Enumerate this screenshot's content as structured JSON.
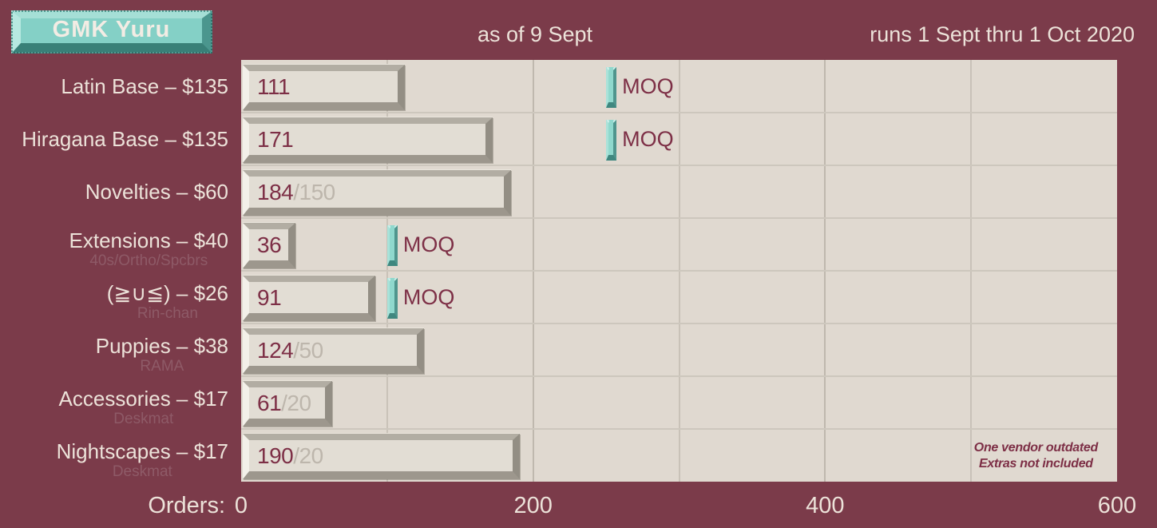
{
  "header": {
    "title": "GMK Yuru",
    "as_of": "as of 9 Sept",
    "run_dates": "runs 1 Sept thru 1 Oct 2020"
  },
  "chart_data": {
    "type": "bar",
    "orientation": "horizontal",
    "xlabel": "Orders:",
    "xlim": [
      0,
      600
    ],
    "xticks": [
      0,
      200,
      400,
      600
    ],
    "minor_gridlines": [
      100,
      300,
      500
    ],
    "major_gridlines": [
      200,
      400
    ],
    "moq_label": "MOQ",
    "rows": [
      {
        "label": "Latin Base – $135",
        "sublabel": "",
        "value": 111,
        "cap": null,
        "moq": 250
      },
      {
        "label": "Hiragana Base – $135",
        "sublabel": "",
        "value": 171,
        "cap": null,
        "moq": 250
      },
      {
        "label": "Novelties – $60",
        "sublabel": "",
        "value": 184,
        "cap": 150,
        "moq": null
      },
      {
        "label": "Extensions – $40",
        "sublabel": "40s/Ortho/Spcbrs",
        "value": 36,
        "cap": null,
        "moq": 100
      },
      {
        "label": "(≧∪≦) – $26",
        "sublabel": "Rin-chan",
        "value": 91,
        "cap": null,
        "moq": 100
      },
      {
        "label": "Puppies – $38",
        "sublabel": "RAMA",
        "value": 124,
        "cap": 50,
        "moq": null
      },
      {
        "label": "Accessories – $17",
        "sublabel": "Deskmat",
        "value": 61,
        "cap": 20,
        "moq": null
      },
      {
        "label": "Nightscapes – $17",
        "sublabel": "Deskmat",
        "value": 190,
        "cap": 20,
        "moq": null
      }
    ],
    "footnote": [
      "One vendor outdated",
      "Extras not included"
    ]
  },
  "colors": {
    "background": "#7b3b4a",
    "panel": "#e0d9d0",
    "bar_face": "#e2ddd4",
    "keycap_teal": "#84d0c6",
    "text_cream": "#ece2d9",
    "text_maroon": "#7d2f46",
    "cap_gray": "#bdb6ac"
  }
}
